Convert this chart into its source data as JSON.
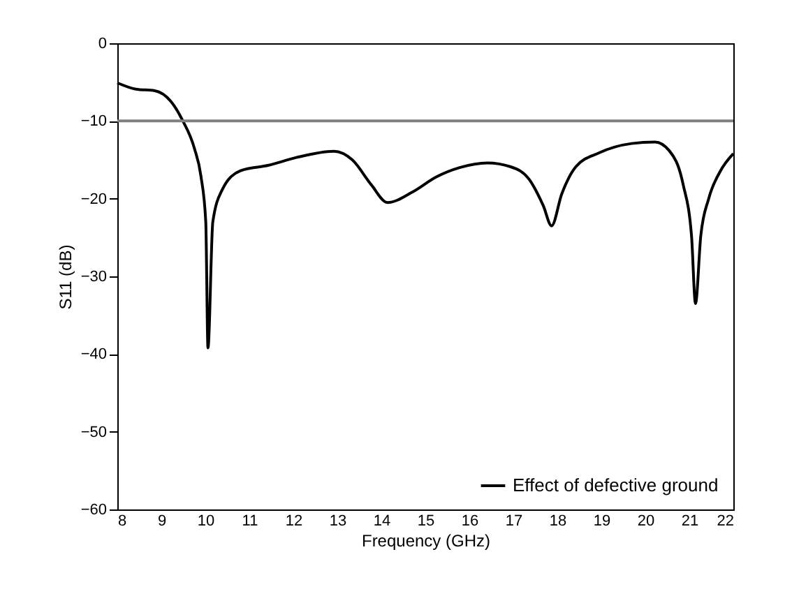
{
  "chart_data": {
    "type": "line",
    "xlabel": "Frequency (GHz)",
    "ylabel": "S11 (dB)",
    "xlim": [
      8,
      22
    ],
    "xticks": [
      8,
      9,
      10,
      11,
      12,
      13,
      14,
      15,
      16,
      17,
      18,
      19,
      20,
      21,
      22
    ],
    "ylim": [
      -60,
      0
    ],
    "yticks": [
      -60,
      -50,
      -40,
      -30,
      -20,
      -10,
      0
    ],
    "grid": false,
    "legend": "bottom right",
    "marker": "none",
    "line_style": "solid",
    "ref_lines": [
      {
        "axis": "y",
        "value": -10,
        "color": "#808080"
      }
    ],
    "series": [
      {
        "name": "Effect of defective ground",
        "color": "#000000",
        "x": [
          8,
          8.42,
          8.85,
          9.22,
          9.48,
          9.75,
          9.9,
          10.01,
          10.06,
          10.17,
          10.38,
          10.8,
          11.44,
          12.07,
          12.92,
          13.34,
          13.77,
          14.14,
          14.72,
          15.25,
          15.78,
          16.41,
          16.94,
          17.37,
          17.68,
          17.87,
          18.1,
          18.42,
          18.95,
          19.69,
          20.22,
          20.54,
          20.86,
          21.05,
          21.14,
          21.26,
          21.44,
          21.7,
          22
        ],
        "values": [
          -5.1,
          -5.9,
          -6.1,
          -7.5,
          -9.9,
          -13.5,
          -17.1,
          -23,
          -39.2,
          -23,
          -18.9,
          -16.4,
          -15.7,
          -14.7,
          -13.9,
          -15,
          -18.2,
          -20.5,
          -19.1,
          -17.2,
          -16,
          -15.4,
          -15.9,
          -17.6,
          -20.9,
          -23.5,
          -19.4,
          -15.9,
          -14.1,
          -12.9,
          -12.7,
          -13.8,
          -18.2,
          -24.8,
          -33.5,
          -24.8,
          -20,
          -16.5,
          -14.2
        ]
      }
    ]
  }
}
